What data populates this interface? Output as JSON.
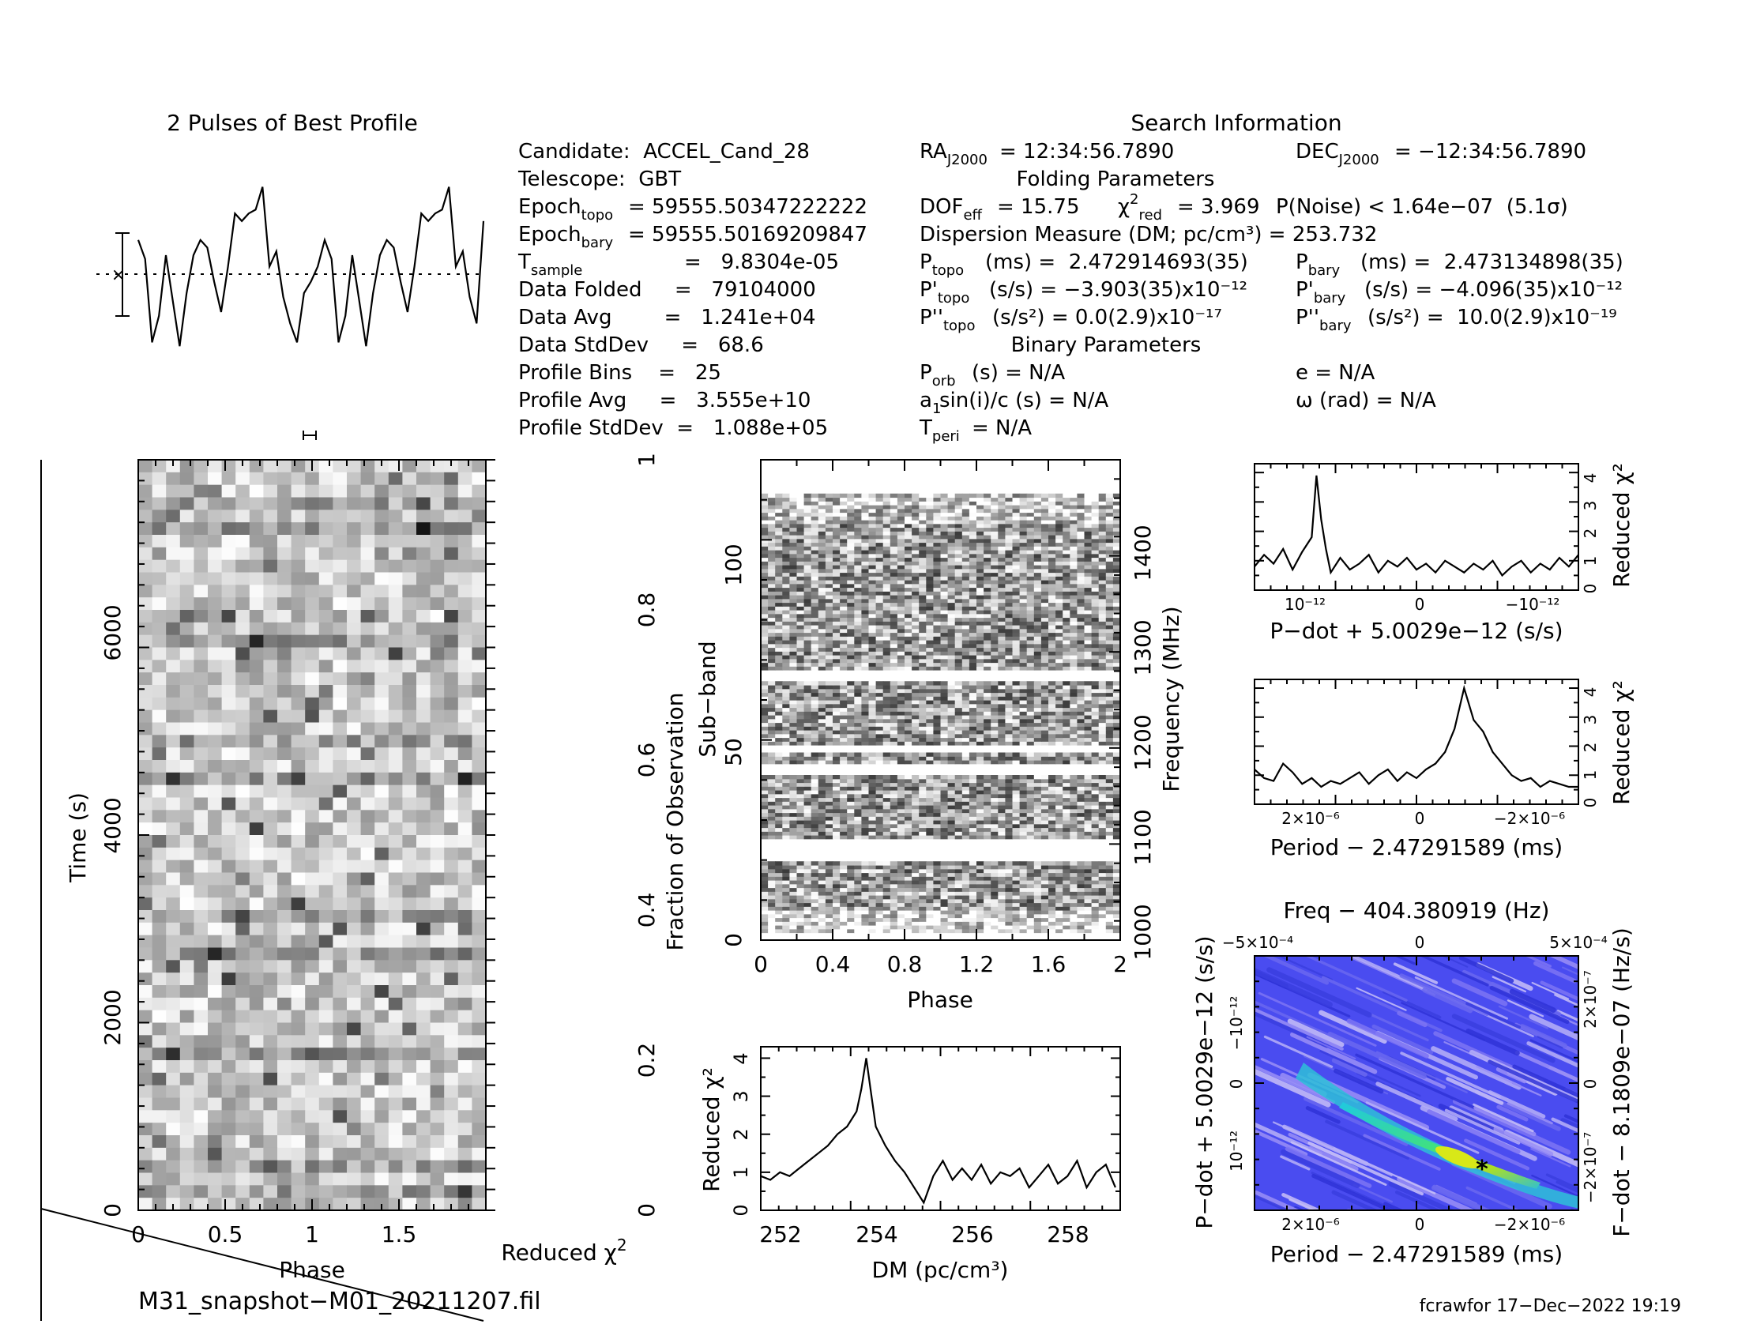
{
  "header": {
    "profile_title": "2 Pulses of Best Profile",
    "search_title": "Search Information",
    "folding_title": "Folding Parameters",
    "binary_title": "Binary Parameters"
  },
  "info": {
    "candidate": "Candidate:  ACCEL_Cand_28",
    "telescope": "Telescope:  GBT",
    "epoch_topo_value": "= 59555.50347222222",
    "epoch_bary_value": "= 59555.50169209847",
    "tsample_value": "=   9.8304e-05",
    "data_folded": "Data Folded     =   79104000",
    "data_avg": "Data Avg        =   1.241e+04",
    "data_stddev": "Data StdDev     =   68.6",
    "profile_bins": "Profile Bins    =   25",
    "profile_avg": "Profile Avg     =   3.555e+10",
    "profile_stddev": "Profile StdDev  =   1.088e+05"
  },
  "search": {
    "ra_value": "= 12:34:56.7890",
    "dec_value": "= −12:34:56.7890",
    "dof_value": "= 15.75",
    "chi2red_value": "= 3.969",
    "pnoise": "P(Noise) < 1.64e−07  (5.1σ)",
    "dm": "Dispersion Measure (DM; pc/cm³) = 253.732",
    "ptopo_value": "(ms) =  2.472914693(35)",
    "pbary_value": "(ms) =  2.473134898(35)",
    "pdot_topo_value": "(s/s) = −3.903(35)x10⁻¹²",
    "pdot_bary_value": "(s/s) = −4.096(35)x10⁻¹²",
    "pddot_topo_value": "(s/s²) = 0.0(2.9)x10⁻¹⁷",
    "pddot_bary_value": "(s/s²) =  10.0(2.9)x10⁻¹⁹",
    "porb_value": "(s) = N/A",
    "asini_value": "sin(i)/c (s) = N/A",
    "tperi_value": "= N/A",
    "ecc": "e = N/A",
    "omega": "ω (rad) = N/A"
  },
  "footer": {
    "filename": "M31_snapshot−M01_20211207.fil",
    "credit": "fcrawfor 17−Dec−2022 19:19"
  },
  "chart_data": [
    {
      "type": "line",
      "panel": "pulse-profile",
      "title": "2 Pulses of Best Profile",
      "x": [
        0,
        0.04,
        0.08,
        0.12,
        0.16,
        0.2,
        0.24,
        0.28,
        0.32,
        0.36,
        0.4,
        0.44,
        0.48,
        0.52,
        0.56,
        0.6,
        0.64,
        0.68,
        0.72,
        0.76,
        0.8,
        0.84,
        0.88,
        0.92,
        0.96,
        1.0,
        1.04,
        1.08,
        1.12,
        1.16,
        1.2,
        1.24,
        1.28,
        1.32,
        1.36,
        1.4,
        1.44,
        1.48,
        1.52,
        1.56,
        1.6,
        1.64,
        1.68,
        1.72,
        1.76,
        1.8,
        1.84,
        1.88,
        1.92,
        1.96,
        2.0
      ],
      "values": [
        0.9,
        0.4,
        -1.8,
        -1.1,
        0.5,
        -0.7,
        -1.9,
        -0.5,
        0.5,
        0.9,
        0.7,
        -0.2,
        -1.0,
        0.2,
        1.6,
        1.4,
        1.6,
        1.7,
        2.3,
        0.2,
        0.6,
        -0.6,
        -1.3,
        -1.8,
        -0.5,
        -0.2,
        0.2,
        0.9,
        0.4,
        -1.8,
        -1.1,
        0.5,
        -0.7,
        -1.9,
        -0.5,
        0.5,
        0.9,
        0.7,
        -0.2,
        -1.0,
        0.2,
        1.6,
        1.4,
        1.6,
        1.7,
        2.3,
        0.2,
        0.6,
        -0.6,
        -1.3,
        1.4
      ]
    },
    {
      "type": "heatmap",
      "panel": "time-phase",
      "xlabel": "Phase",
      "ylabel": "Time (s)",
      "right_axis_label": "Fraction of Observation",
      "ylim": [
        0,
        7800
      ],
      "x_ticks": [
        "0",
        "0.5",
        "1",
        "1.5"
      ],
      "y_ticks": [
        "0",
        "2000",
        "4000",
        "6000"
      ],
      "right_ticks": [
        "0",
        "0.2",
        "0.4",
        "0.6",
        "0.8",
        "1"
      ],
      "colormap": "grayscale",
      "rows": 60,
      "cols": 25
    },
    {
      "type": "heatmap",
      "panel": "subband-phase",
      "xlabel": "Phase",
      "ylabel": "Sub−band",
      "right_axis_label": "Frequency (MHz)",
      "ylim": [
        0,
        128
      ],
      "x_ticks": [
        "0",
        "0.4",
        "0.8",
        "1.2",
        "1.6",
        "2"
      ],
      "y_ticks": [
        "0",
        "50",
        "100"
      ],
      "right_ticks": [
        "1000",
        "1100",
        "1200",
        "1300",
        "1400"
      ],
      "colormap": "grayscale",
      "empty_rows": [
        [
          21,
          27
        ],
        [
          44,
          47
        ],
        [
          50,
          52
        ],
        [
          69,
          72
        ],
        [
          119,
          128
        ]
      ]
    },
    {
      "type": "line",
      "panel": "dm-chi2",
      "xlabel": "DM (pc/cm³)",
      "ylabel": "Reduced χ²",
      "xlim": [
        251.5,
        259.0
      ],
      "ylim": [
        0,
        4.3
      ],
      "x_ticks": [
        "252",
        "254",
        "256",
        "258"
      ],
      "y_ticks": [
        "0",
        "1",
        "2",
        "3",
        "4"
      ],
      "x": [
        251.5,
        251.7,
        251.9,
        252.1,
        252.3,
        252.5,
        252.7,
        252.9,
        253.1,
        253.3,
        253.5,
        253.6,
        253.7,
        253.8,
        253.9,
        254.1,
        254.3,
        254.5,
        254.7,
        254.9,
        255.1,
        255.3,
        255.5,
        255.7,
        255.9,
        256.1,
        256.3,
        256.5,
        256.7,
        256.9,
        257.1,
        257.3,
        257.5,
        257.7,
        257.9,
        258.1,
        258.3,
        258.5,
        258.7,
        258.9
      ],
      "values": [
        0.9,
        0.8,
        1.0,
        0.9,
        1.1,
        1.3,
        1.5,
        1.7,
        2.0,
        2.2,
        2.6,
        3.2,
        4.0,
        3.1,
        2.2,
        1.7,
        1.3,
        1.0,
        0.6,
        0.2,
        0.9,
        1.3,
        0.8,
        1.1,
        0.8,
        1.2,
        0.7,
        1.0,
        0.9,
        1.1,
        0.6,
        0.9,
        1.2,
        0.7,
        0.9,
        1.3,
        0.6,
        1.0,
        1.2,
        0.6
      ]
    },
    {
      "type": "line",
      "panel": "pdot-chi2",
      "xlabel": "P−dot + 5.0029e−12 (s/s)",
      "ylabel": "Reduced χ²",
      "x_ticks": [
        "10⁻¹²",
        "0",
        "−10⁻¹²"
      ],
      "y_ticks": [
        "0",
        "1",
        "2",
        "3",
        "4"
      ],
      "ylim": [
        0,
        4.3
      ],
      "x": [
        -1.7,
        -1.6,
        -1.5,
        -1.4,
        -1.3,
        -1.2,
        -1.1,
        -1.05,
        -1.0,
        -0.95,
        -0.9,
        -0.8,
        -0.7,
        -0.6,
        -0.5,
        -0.4,
        -0.3,
        -0.2,
        -0.1,
        0,
        0.1,
        0.2,
        0.3,
        0.4,
        0.5,
        0.6,
        0.7,
        0.8,
        0.9,
        1.0,
        1.1,
        1.2,
        1.3,
        1.4,
        1.5,
        1.6,
        1.7
      ],
      "values": [
        0.8,
        1.2,
        0.9,
        1.4,
        0.7,
        1.3,
        1.8,
        3.9,
        2.4,
        1.4,
        0.6,
        1.1,
        0.7,
        0.9,
        1.2,
        0.6,
        1.0,
        0.8,
        1.1,
        0.7,
        0.9,
        0.6,
        1.0,
        0.8,
        0.6,
        0.9,
        0.7,
        1.0,
        0.5,
        0.8,
        1.0,
        0.6,
        0.9,
        0.7,
        1.1,
        0.8,
        1.2
      ]
    },
    {
      "type": "line",
      "panel": "period-chi2",
      "xlabel": "Period − 2.47291589 (ms)",
      "ylabel": "Reduced χ²",
      "x_ticks": [
        "2×10⁻⁶",
        "0",
        "−2×10⁻⁶"
      ],
      "y_ticks": [
        "0",
        "1",
        "2",
        "3",
        "4"
      ],
      "ylim": [
        0,
        4.3
      ],
      "x": [
        -3.4,
        -3.2,
        -3.0,
        -2.8,
        -2.6,
        -2.4,
        -2.2,
        -2.0,
        -1.8,
        -1.6,
        -1.4,
        -1.2,
        -1.0,
        -0.8,
        -0.6,
        -0.4,
        -0.2,
        0,
        0.2,
        0.4,
        0.6,
        0.8,
        1.0,
        1.2,
        1.4,
        1.6,
        1.8,
        2.0,
        2.2,
        2.4,
        2.6,
        2.8,
        3.0,
        3.2,
        3.4
      ],
      "values": [
        1.2,
        0.9,
        0.8,
        1.4,
        1.1,
        0.7,
        0.9,
        0.6,
        0.8,
        0.7,
        0.9,
        1.1,
        0.7,
        1.0,
        1.2,
        0.8,
        1.1,
        0.9,
        1.2,
        1.4,
        1.8,
        2.6,
        4.0,
        2.9,
        2.5,
        1.8,
        1.4,
        1.0,
        0.8,
        0.9,
        0.6,
        0.8,
        0.7,
        0.6,
        0.6
      ]
    },
    {
      "type": "heatmap",
      "panel": "period-pdot",
      "title": "Freq − 404.380919 (Hz)",
      "xlabel": "Period − 2.47291589 (ms)",
      "ylabel": "P−dot + 5.0029e−12 (s/s)",
      "right_axis_label": "F−dot − 8.1809e−07 (Hz/s)",
      "x_ticks": [
        "2×10⁻⁶",
        "0",
        "−2×10⁻⁶"
      ],
      "top_ticks": [
        "−5×10⁻⁴",
        "0",
        "5×10⁻⁴"
      ],
      "y_ticks": [
        "−10⁻¹²",
        "0",
        "10⁻¹²"
      ],
      "right_ticks": [
        "2×10⁻⁷",
        "0",
        "−2×10⁻⁷"
      ],
      "colormap": "blue-green-yellow",
      "best_marker": "*"
    }
  ]
}
